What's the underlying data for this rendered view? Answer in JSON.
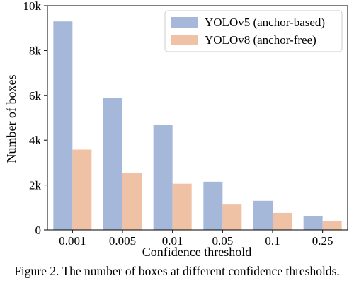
{
  "chart_data": {
    "type": "bar",
    "title": "",
    "xlabel": "Confidence threshold",
    "ylabel": "Number of boxes",
    "categories": [
      "0.001",
      "0.005",
      "0.01",
      "0.05",
      "0.1",
      "0.25"
    ],
    "series": [
      {
        "name": "YOLOv5 (anchor-based)",
        "color": "#a6b8d9",
        "values": [
          9300,
          5900,
          4680,
          2150,
          1300,
          600
        ]
      },
      {
        "name": "YOLOv8 (anchor-free)",
        "color": "#efc2a5",
        "values": [
          3580,
          2550,
          2060,
          1130,
          760,
          380
        ]
      }
    ],
    "ylim": [
      0,
      10000
    ],
    "yticks": [
      0,
      2000,
      4000,
      6000,
      8000,
      10000
    ],
    "ytick_labels": [
      "0",
      "2k",
      "4k",
      "6k",
      "8k",
      "10k"
    ],
    "grid": false,
    "legend_position": "top-right"
  },
  "caption": "Figure 2. The number of boxes at different confidence thresholds."
}
